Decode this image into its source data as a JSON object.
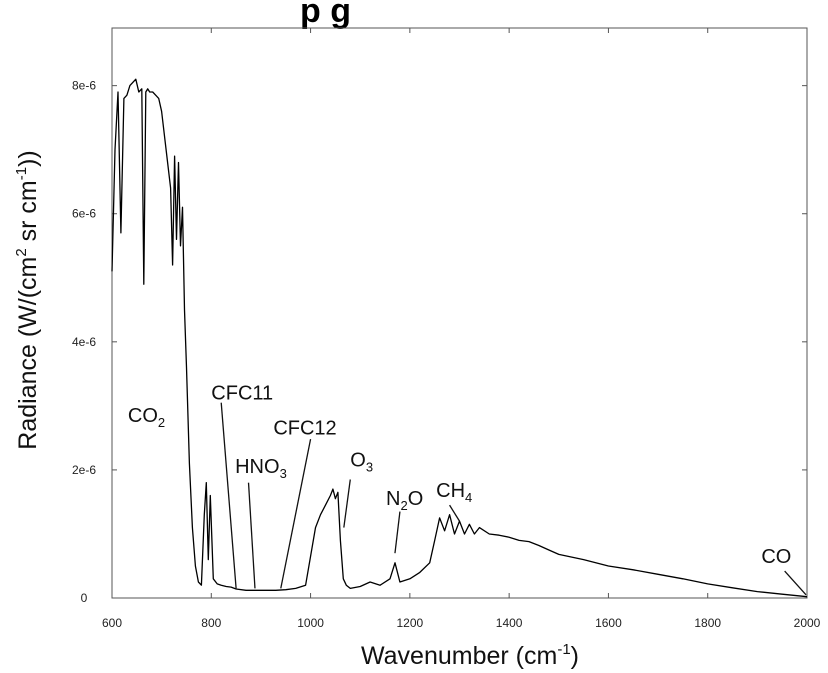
{
  "chart_data": {
    "type": "line",
    "title": "",
    "title_fragment": "p    g",
    "xlabel": "Wavenumber (cm",
    "xlabel_sup": "-1",
    "xlabel_end": ")",
    "ylabel": "Radiance (W/(cm",
    "ylabel_sup1": "2",
    "ylabel_mid": " sr cm",
    "ylabel_sup2": "-1",
    "ylabel_end": "))",
    "xlim": [
      600,
      2000
    ],
    "ylim": [
      0,
      8.9e-06
    ],
    "x_ticks": [
      600,
      800,
      1000,
      1200,
      1400,
      1600,
      1800,
      2000
    ],
    "x_tick_labels": [
      "600",
      "800",
      "1000",
      "1200",
      "1400",
      "1600",
      "1800",
      "2000"
    ],
    "y_ticks": [
      0,
      2e-06,
      4e-06,
      6e-06,
      8e-06
    ],
    "y_tick_labels": [
      "0",
      "2e-6",
      "4e-6",
      "6e-6",
      "8e-6"
    ],
    "grid": false,
    "line_color": "#000000",
    "series": [
      {
        "values_note_free": true,
        "x": [
          600,
          606,
          612,
          618,
          624,
          630,
          636,
          642,
          648,
          654,
          660,
          664,
          668,
          672,
          676,
          682,
          688,
          694,
          700,
          706,
          712,
          718,
          722,
          726,
          730,
          734,
          738,
          742,
          746,
          750,
          756,
          762,
          768,
          774,
          780,
          786,
          790,
          794,
          798,
          804,
          812,
          820,
          830,
          840,
          850,
          870,
          890,
          910,
          930,
          950,
          970,
          990,
          1010,
          1020,
          1030,
          1040,
          1045,
          1050,
          1055,
          1060,
          1066,
          1072,
          1080,
          1100,
          1120,
          1140,
          1160,
          1170,
          1180,
          1200,
          1220,
          1240,
          1250,
          1260,
          1270,
          1280,
          1290,
          1300,
          1310,
          1320,
          1330,
          1340,
          1360,
          1380,
          1400,
          1420,
          1440,
          1460,
          1480,
          1500,
          1550,
          1600,
          1650,
          1700,
          1750,
          1800,
          1850,
          1900,
          1950,
          2000
        ],
        "y": [
          5.1e-06,
          7e-06,
          7.9e-06,
          5.7e-06,
          7.8e-06,
          7.85e-06,
          8e-06,
          8.05e-06,
          8.1e-06,
          7.9e-06,
          7.95e-06,
          4.9e-06,
          7.9e-06,
          7.95e-06,
          7.9e-06,
          7.9e-06,
          7.85e-06,
          7.8e-06,
          7.6e-06,
          7.2e-06,
          6.8e-06,
          6.4e-06,
          5.2e-06,
          6.9e-06,
          5.6e-06,
          6.8e-06,
          5.5e-06,
          6.1e-06,
          4.5e-06,
          3.6e-06,
          2.1e-06,
          1.1e-06,
          5e-07,
          2.5e-07,
          2e-07,
          1.3e-06,
          1.8e-06,
          6e-07,
          1.6e-06,
          3e-07,
          2.2e-07,
          2e-07,
          1.8e-07,
          1.7e-07,
          1.4e-07,
          1.2e-07,
          1.2e-07,
          1.2e-07,
          1.2e-07,
          1.3e-07,
          1.5e-07,
          2e-07,
          1.1e-06,
          1.3e-06,
          1.45e-06,
          1.6e-06,
          1.7e-06,
          1.55e-06,
          1.65e-06,
          9e-07,
          3e-07,
          2e-07,
          1.5e-07,
          1.8e-07,
          2.5e-07,
          2e-07,
          3e-07,
          5.5e-07,
          2.5e-07,
          3e-07,
          4e-07,
          5.5e-07,
          9e-07,
          1.25e-06,
          1.05e-06,
          1.3e-06,
          1e-06,
          1.2e-06,
          1e-06,
          1.15e-06,
          1e-06,
          1.1e-06,
          1e-06,
          9.8e-07,
          9.5e-07,
          9e-07,
          8.8e-07,
          8.2e-07,
          7.5e-07,
          6.8e-07,
          6e-07,
          5e-07,
          4.4e-07,
          3.7e-07,
          3e-07,
          2.2e-07,
          1.6e-07,
          1e-07,
          6e-08,
          2e-08
        ]
      }
    ],
    "annotations": [
      {
        "label": "CO",
        "sub": "2",
        "text_x": 632,
        "text_y": 2.75e-06,
        "line": null
      },
      {
        "label": "CFC11",
        "sub": "",
        "text_x": 800,
        "text_y": 3.1e-06,
        "line": [
          820,
          3.05e-06,
          850,
          1.5e-07
        ]
      },
      {
        "label": "HNO",
        "sub": "3",
        "text_x": 848,
        "text_y": 1.95e-06,
        "line": [
          875,
          1.8e-06,
          888,
          1.5e-07
        ]
      },
      {
        "label": "CFC12",
        "sub": "",
        "text_x": 925,
        "text_y": 2.55e-06,
        "line": [
          1000,
          2.48e-06,
          940,
          1.5e-07
        ]
      },
      {
        "label": "O",
        "sub": "3",
        "text_x": 1080,
        "text_y": 2.05e-06,
        "line": [
          1080,
          1.85e-06,
          1067,
          1.1e-06
        ]
      },
      {
        "label": "N",
        "sub": "2",
        "tail": "O",
        "text_x": 1152,
        "text_y": 1.45e-06,
        "line": [
          1180,
          1.35e-06,
          1170,
          7e-07
        ]
      },
      {
        "label": "CH",
        "sub": "4",
        "text_x": 1253,
        "text_y": 1.58e-06,
        "line": [
          1280,
          1.45e-06,
          1300,
          1.2e-06
        ]
      },
      {
        "label": "CO",
        "sub": "",
        "text_x": 1908,
        "text_y": 5.5e-07,
        "line": [
          1955,
          4.2e-07,
          1998,
          5e-08
        ]
      }
    ]
  }
}
